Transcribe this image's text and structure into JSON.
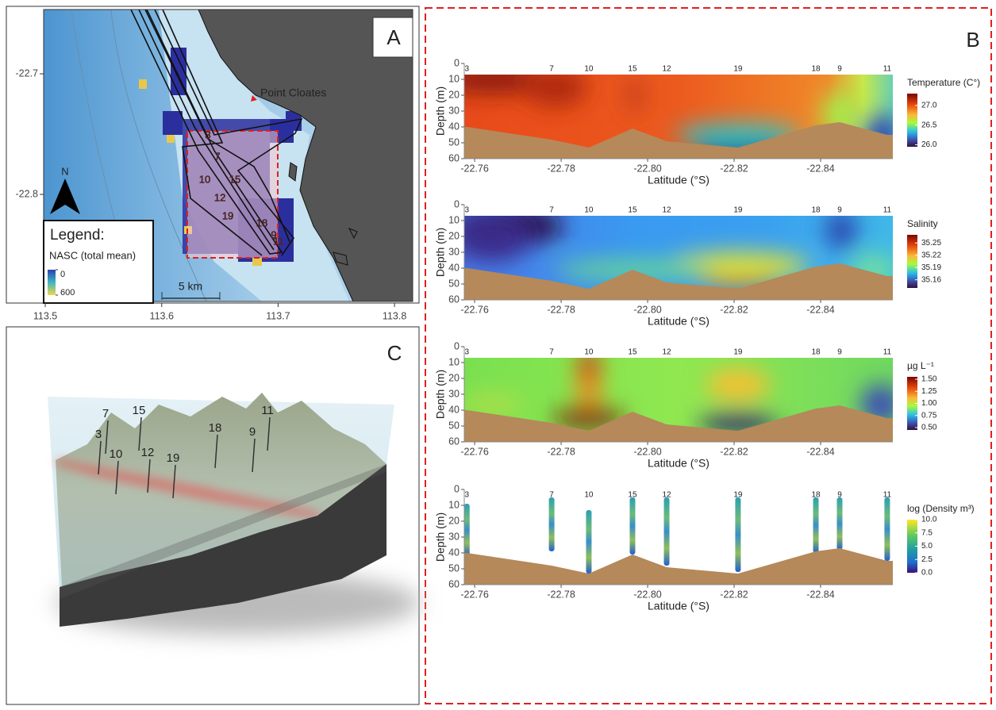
{
  "panel_a": {
    "label": "A",
    "place": "Point Cloates",
    "north": "N",
    "scale_label": "5 km",
    "legend_title": "Legend:",
    "legend_subtitle": "NASC (total mean)",
    "legend_lim": [
      0,
      600
    ],
    "legend_ticks": [
      0,
      600
    ],
    "xlim": [
      113.4986,
      113.8156
    ],
    "ylim": [
      -22.6467,
      -22.8888
    ],
    "xticks": [
      113.5,
      113.6,
      113.7,
      113.8
    ],
    "yticks": [
      -22.7,
      -22.8
    ],
    "place_lon": 113.6779,
    "place_lat": -22.7197,
    "stations": [
      {
        "label": "3",
        "lon": 113.6397,
        "lat": -22.7513
      },
      {
        "label": "7",
        "lon": 113.6479,
        "lat": -22.7691
      },
      {
        "label": "10",
        "lon": 113.637,
        "lat": -22.7882
      },
      {
        "label": "15",
        "lon": 113.6629,
        "lat": -22.7882
      },
      {
        "label": "12",
        "lon": 113.65,
        "lat": -22.8033
      },
      {
        "label": "19",
        "lon": 113.6568,
        "lat": -22.8184
      },
      {
        "label": "18",
        "lon": 113.6861,
        "lat": -22.8243
      },
      {
        "label": "9",
        "lon": 113.6963,
        "lat": -22.8342
      },
      {
        "label": "11",
        "lon": 113.7004,
        "lat": -22.8395
      }
    ]
  },
  "panel_b": {
    "label": "B"
  },
  "panel_c": {
    "label": "C",
    "stations": [
      "3",
      "7",
      "10",
      "15",
      "12",
      "19",
      "18",
      "9",
      "11"
    ]
  },
  "chart_data": [
    {
      "type": "heatmap",
      "ylabel": "Depth (m)",
      "xlabel": "Latitude (°S)",
      "xlim": [
        -22.7576,
        -22.8567
      ],
      "xticks": [
        -22.76,
        -22.78,
        {
          "value": -22.8,
          "label": "-22.80"
        },
        -22.82,
        -22.84
      ],
      "ylim": [
        0,
        60
      ],
      "yticks": [
        0,
        10,
        20,
        30,
        40,
        50,
        60
      ],
      "stations": [
        "3",
        "7",
        "10",
        "15",
        "12",
        "19",
        "18",
        "9",
        "11"
      ],
      "station_lat": [
        -22.7582,
        -22.7778,
        -22.7864,
        -22.7965,
        -22.8044,
        -22.8209,
        -22.8389,
        -22.8444,
        -22.8554
      ],
      "seafloor_depth": [
        40,
        48,
        53,
        41,
        49,
        53,
        39,
        37,
        45
      ],
      "colorbar_title": "Temperature (C°)",
      "colorbar_lim": [
        25.95,
        27.3
      ],
      "colorbar_ticks": [
        {
          "value": 27,
          "label": "27.0"
        },
        26.5,
        {
          "value": 26,
          "label": "26.0"
        }
      ]
    },
    {
      "type": "heatmap",
      "ylabel": "Depth (m)",
      "xlabel": "Latitude (°S)",
      "xlim": [
        -22.7576,
        -22.8567
      ],
      "xticks": [
        -22.76,
        -22.78,
        {
          "value": -22.8,
          "label": "-22.80"
        },
        -22.82,
        -22.84
      ],
      "ylim": [
        0,
        60
      ],
      "yticks": [
        0,
        10,
        20,
        30,
        40,
        50,
        60
      ],
      "stations": [
        "3",
        "7",
        "10",
        "15",
        "12",
        "19",
        "18",
        "9",
        "11"
      ],
      "station_lat": [
        -22.7582,
        -22.7778,
        -22.7864,
        -22.7965,
        -22.8044,
        -22.8209,
        -22.8389,
        -22.8444,
        -22.8554
      ],
      "seafloor_depth": [
        40,
        48,
        53,
        41,
        49,
        53,
        39,
        37,
        45
      ],
      "colorbar_title": "Salinity",
      "colorbar_lim": [
        35.14,
        35.27
      ],
      "colorbar_ticks": [
        35.25,
        35.22,
        35.19,
        35.16
      ]
    },
    {
      "type": "heatmap",
      "ylabel": "Depth (m)",
      "xlabel": "Latitude (°S)",
      "xlim": [
        -22.7576,
        -22.8567
      ],
      "xticks": [
        -22.76,
        -22.78,
        {
          "value": -22.8,
          "label": "-22.80"
        },
        -22.82,
        -22.84
      ],
      "ylim": [
        0,
        60
      ],
      "yticks": [
        0,
        10,
        20,
        30,
        40,
        50,
        60
      ],
      "stations": [
        "3",
        "7",
        "10",
        "15",
        "12",
        "19",
        "18",
        "9",
        "11"
      ],
      "station_lat": [
        -22.7582,
        -22.7778,
        -22.7864,
        -22.7965,
        -22.8044,
        -22.8209,
        -22.8389,
        -22.8444,
        -22.8554
      ],
      "seafloor_depth": [
        40,
        48,
        53,
        41,
        49,
        53,
        39,
        37,
        45
      ],
      "colorbar_title": "µg L⁻¹",
      "colorbar_lim": [
        0.45,
        1.55
      ],
      "colorbar_ticks": [
        {
          "value": 1.5,
          "label": "1.50"
        },
        1.25,
        {
          "value": 1,
          "label": "1.00"
        },
        0.75,
        {
          "value": 0.5,
          "label": "0.50"
        }
      ]
    },
    {
      "type": "profile",
      "ylabel": "Depth (m)",
      "xlabel": "Latitude (°S)",
      "xlim": [
        -22.7576,
        -22.8567
      ],
      "xticks": [
        -22.76,
        -22.78,
        {
          "value": -22.8,
          "label": "-22.80"
        },
        -22.82,
        -22.84
      ],
      "ylim": [
        0,
        60
      ],
      "yticks": [
        0,
        10,
        20,
        30,
        40,
        50,
        60
      ],
      "stations": [
        "3",
        "7",
        "10",
        "15",
        "12",
        "19",
        "18",
        "9",
        "11"
      ],
      "station_lat": [
        -22.7582,
        -22.7778,
        -22.7864,
        -22.7965,
        -22.8044,
        -22.8209,
        -22.8389,
        -22.8444,
        -22.8554
      ],
      "seafloor_depth": [
        40,
        48,
        53,
        41,
        49,
        53,
        39,
        37,
        45
      ],
      "profile_top": [
        9,
        5,
        13,
        5,
        5,
        5,
        5,
        5,
        5
      ],
      "profile_bottom": [
        42,
        39,
        53,
        41,
        48,
        52,
        40,
        38,
        45
      ],
      "colorbar_title": "log (Density m³)",
      "colorbar_lim": [
        0,
        10
      ],
      "colorbar_ticks": [
        {
          "value": 10,
          "label": "10.0"
        },
        7.5,
        {
          "value": 5,
          "label": "5.0"
        },
        2.5,
        {
          "value": 0,
          "label": "0.0"
        }
      ]
    }
  ]
}
